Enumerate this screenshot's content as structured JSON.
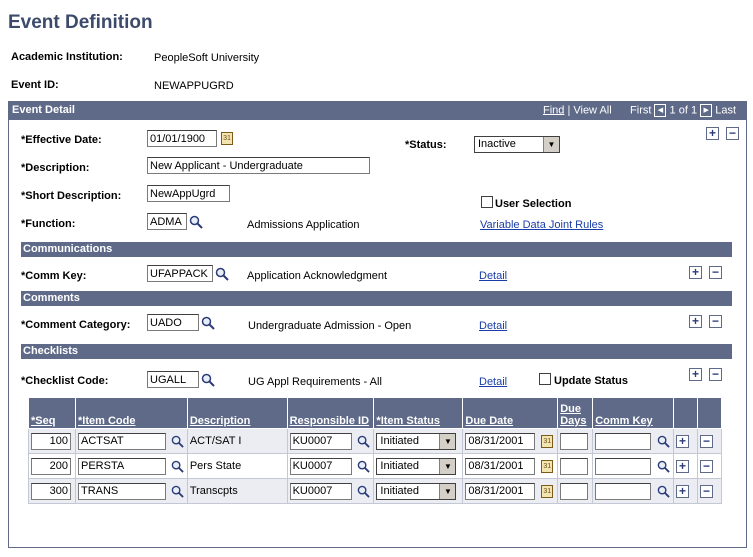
{
  "page_title": "Event Definition",
  "academic_institution": {
    "label": "Academic Institution:",
    "value": "PeopleSoft University"
  },
  "event_id": {
    "label": "Event ID:",
    "value": "NEWAPPUGRD"
  },
  "event_detail": {
    "title": "Event Detail",
    "nav": {
      "find": "Find",
      "sep": "|",
      "view_all": "View All",
      "first": "First",
      "counter": "1 of 1",
      "last": "Last"
    },
    "effective_date": {
      "label": "*Effective Date:",
      "value": "01/01/1900"
    },
    "status": {
      "label": "*Status:",
      "value": "Inactive"
    },
    "description": {
      "label": "*Description:",
      "value": "New Applicant - Undergraduate"
    },
    "short_description": {
      "label": "*Short Description:",
      "value": "NewAppUgrd"
    },
    "user_selection": {
      "label": "User Selection"
    },
    "function": {
      "label": "*Function:",
      "value": "ADMA",
      "desc": "Admissions Application"
    },
    "variable_link": "Variable Data Joint Rules"
  },
  "communications": {
    "title": "Communications",
    "comm_key": {
      "label": "*Comm Key:",
      "value": "UFAPPACK",
      "desc": "Application Acknowledgment"
    },
    "detail": "Detail"
  },
  "comments": {
    "title": "Comments",
    "category": {
      "label": "*Comment Category:",
      "value": "UADO",
      "desc": "Undergraduate Admission - Open"
    },
    "detail": "Detail"
  },
  "checklists": {
    "title": "Checklists",
    "code": {
      "label": "*Checklist Code:",
      "value": "UGALL",
      "desc": "UG Appl Requirements - All"
    },
    "detail": "Detail",
    "update_status": "Update Status",
    "columns": [
      "*Seq",
      "*Item Code",
      "Description",
      "Responsible ID",
      "*Item Status",
      "Due Date",
      "Due Days",
      "Comm Key"
    ],
    "rows": [
      {
        "seq": "100",
        "item_code": "ACTSAT",
        "description": "ACT/SAT I",
        "responsible_id": "KU0007",
        "item_status": "Initiated",
        "due_date": "08/31/2001",
        "due_days": "",
        "comm_key": ""
      },
      {
        "seq": "200",
        "item_code": "PERSTA",
        "description": "Pers State",
        "responsible_id": "KU0007",
        "item_status": "Initiated",
        "due_date": "08/31/2001",
        "due_days": "",
        "comm_key": ""
      },
      {
        "seq": "300",
        "item_code": "TRANS",
        "description": "Transcpts",
        "responsible_id": "KU0007",
        "item_status": "Initiated",
        "due_date": "08/31/2001",
        "due_days": "",
        "comm_key": ""
      }
    ]
  },
  "symbols": {
    "plus": "+",
    "minus": "−",
    "arrow_down": "▼",
    "cal": "31"
  }
}
